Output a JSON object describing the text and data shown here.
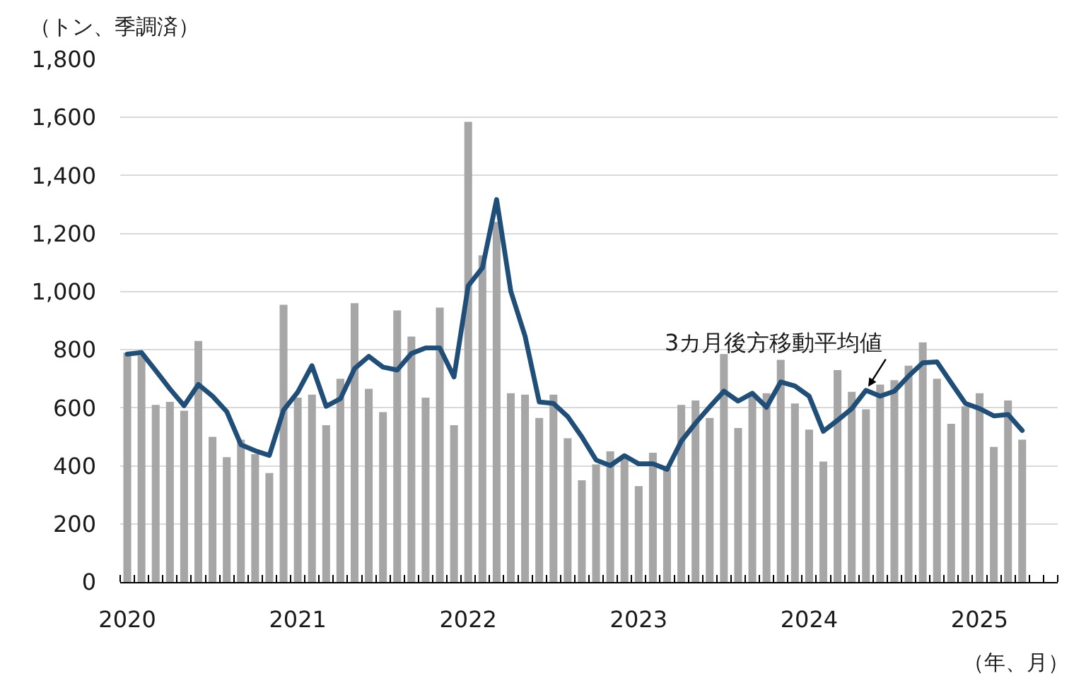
{
  "chart_data": {
    "type": "bar",
    "ylabel": "（トン、季調済）",
    "xlabel": "（年、月）",
    "categories": [
      "2020",
      null,
      null,
      null,
      null,
      null,
      null,
      null,
      null,
      null,
      null,
      null,
      "2021",
      null,
      null,
      null,
      null,
      null,
      null,
      null,
      null,
      null,
      null,
      null,
      "2022",
      null,
      null,
      null,
      null,
      null,
      null,
      null,
      null,
      null,
      null,
      null,
      "2023",
      null,
      null,
      null,
      null,
      null,
      null,
      null,
      null,
      null,
      null,
      null,
      "2024",
      null,
      null,
      null,
      null,
      null,
      null,
      null,
      null,
      null,
      null,
      null,
      "2025",
      null,
      null,
      null,
      null,
      null
    ],
    "series": [
      {
        "color": "#a6a6a6",
        "values": [
          790,
          780,
          610,
          620,
          590,
          830,
          500,
          430,
          490,
          440,
          375,
          955,
          635,
          645,
          540,
          700,
          960,
          665,
          585,
          935,
          845,
          635,
          945,
          540,
          1585,
          1125,
          1240,
          650,
          645,
          565,
          645,
          495,
          350,
          405,
          450,
          425,
          330,
          445,
          390,
          610,
          625,
          565,
          785,
          530,
          640,
          650,
          765,
          615,
          525,
          415,
          730,
          655,
          595,
          680,
          695,
          745,
          825,
          700,
          545,
          605,
          650,
          465,
          625,
          490,
          null,
          null
        ]
      },
      {
        "type": "line",
        "name": "3カ月後方移動平均値",
        "color": "#1f4e79",
        "values": [
          785,
          790,
          728,
          665,
          607,
          680,
          640,
          587,
          473,
          452,
          436,
          592,
          654,
          745,
          605,
          631,
          735,
          777,
          740,
          730,
          787,
          806,
          806,
          706,
          1020,
          1082,
          1317,
          1001,
          847,
          620,
          615,
          570,
          500,
          420,
          401,
          435,
          407,
          407,
          388,
          485,
          547,
          603,
          657,
          623,
          650,
          602,
          689,
          675,
          640,
          519,
          557,
          597,
          660,
          640,
          657,
          709,
          755,
          758,
          686,
          615,
          597,
          572,
          577,
          522,
          null,
          null
        ]
      }
    ],
    "ylim": [
      0,
      1800
    ],
    "yticks": [
      0,
      200,
      400,
      600,
      800,
      {
        "value": 1000,
        "label": "1,000"
      },
      {
        "value": 1200,
        "label": "1,200"
      },
      {
        "value": 1400,
        "label": "1,400"
      },
      {
        "value": 1600,
        "label": "1,600"
      },
      {
        "value": 1800,
        "label": "1,800"
      }
    ],
    "grid": "y"
  }
}
